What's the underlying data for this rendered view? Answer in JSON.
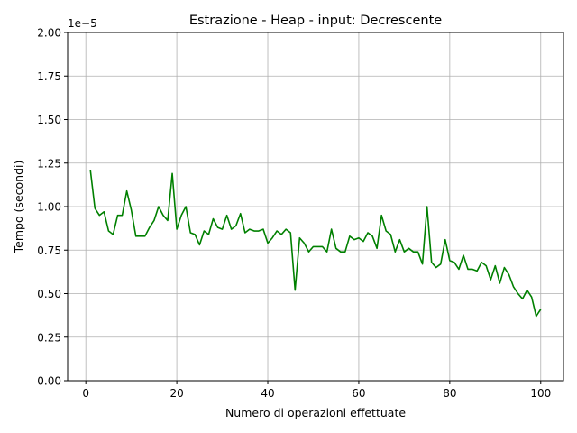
{
  "chart_data": {
    "type": "line",
    "title": "Estrazione - Heap - input: Decrescente",
    "xlabel": "Numero di operazioni effettuate",
    "ylabel": "Tempo (secondi)",
    "y_offset_label": "1e−5",
    "xlim": [
      -4,
      105
    ],
    "ylim": [
      0,
      2.0
    ],
    "x_ticks": [
      0,
      20,
      40,
      60,
      80,
      100
    ],
    "x_tick_labels": [
      "0",
      "20",
      "40",
      "60",
      "80",
      "100"
    ],
    "y_ticks": [
      0,
      0.25,
      0.5,
      0.75,
      1.0,
      1.25,
      1.5,
      1.75,
      2.0
    ],
    "y_tick_labels": [
      "0.00",
      "0.25",
      "0.50",
      "0.75",
      "1.00",
      "1.25",
      "1.50",
      "1.75",
      "2.00"
    ],
    "grid": true,
    "series": [
      {
        "color": "#008000",
        "x": [
          1,
          2,
          3,
          4,
          5,
          6,
          7,
          8,
          9,
          10,
          11,
          12,
          13,
          14,
          15,
          16,
          17,
          18,
          19,
          20,
          21,
          22,
          23,
          24,
          25,
          26,
          27,
          28,
          29,
          30,
          31,
          32,
          33,
          34,
          35,
          36,
          37,
          38,
          39,
          40,
          41,
          42,
          43,
          44,
          45,
          46,
          47,
          48,
          49,
          50,
          51,
          52,
          53,
          54,
          55,
          56,
          57,
          58,
          59,
          60,
          61,
          62,
          63,
          64,
          65,
          66,
          67,
          68,
          69,
          70,
          71,
          72,
          73,
          74,
          75,
          76,
          77,
          78,
          79,
          80,
          81,
          82,
          83,
          84,
          85,
          86,
          87,
          88,
          89,
          90,
          91,
          92,
          93,
          94,
          95,
          96,
          97,
          98,
          99,
          100
        ],
        "y": [
          1.21,
          0.99,
          0.95,
          0.97,
          0.86,
          0.84,
          0.95,
          0.95,
          1.09,
          0.98,
          0.83,
          0.83,
          0.83,
          0.88,
          0.92,
          1.0,
          0.95,
          0.92,
          1.19,
          0.87,
          0.95,
          1.0,
          0.85,
          0.84,
          0.78,
          0.86,
          0.84,
          0.93,
          0.88,
          0.87,
          0.95,
          0.87,
          0.89,
          0.96,
          0.85,
          0.87,
          0.86,
          0.86,
          0.87,
          0.79,
          0.82,
          0.86,
          0.84,
          0.87,
          0.85,
          0.52,
          0.82,
          0.79,
          0.74,
          0.77,
          0.77,
          0.77,
          0.74,
          0.87,
          0.76,
          0.74,
          0.74,
          0.83,
          0.81,
          0.82,
          0.8,
          0.85,
          0.83,
          0.76,
          0.95,
          0.86,
          0.84,
          0.74,
          0.81,
          0.74,
          0.76,
          0.74,
          0.74,
          0.67,
          1.0,
          0.68,
          0.65,
          0.67,
          0.81,
          0.69,
          0.68,
          0.64,
          0.72,
          0.64,
          0.64,
          0.63,
          0.68,
          0.66,
          0.58,
          0.66,
          0.56,
          0.65,
          0.61,
          0.54,
          0.5,
          0.47,
          0.52,
          0.48,
          0.37,
          0.41
        ]
      }
    ]
  }
}
